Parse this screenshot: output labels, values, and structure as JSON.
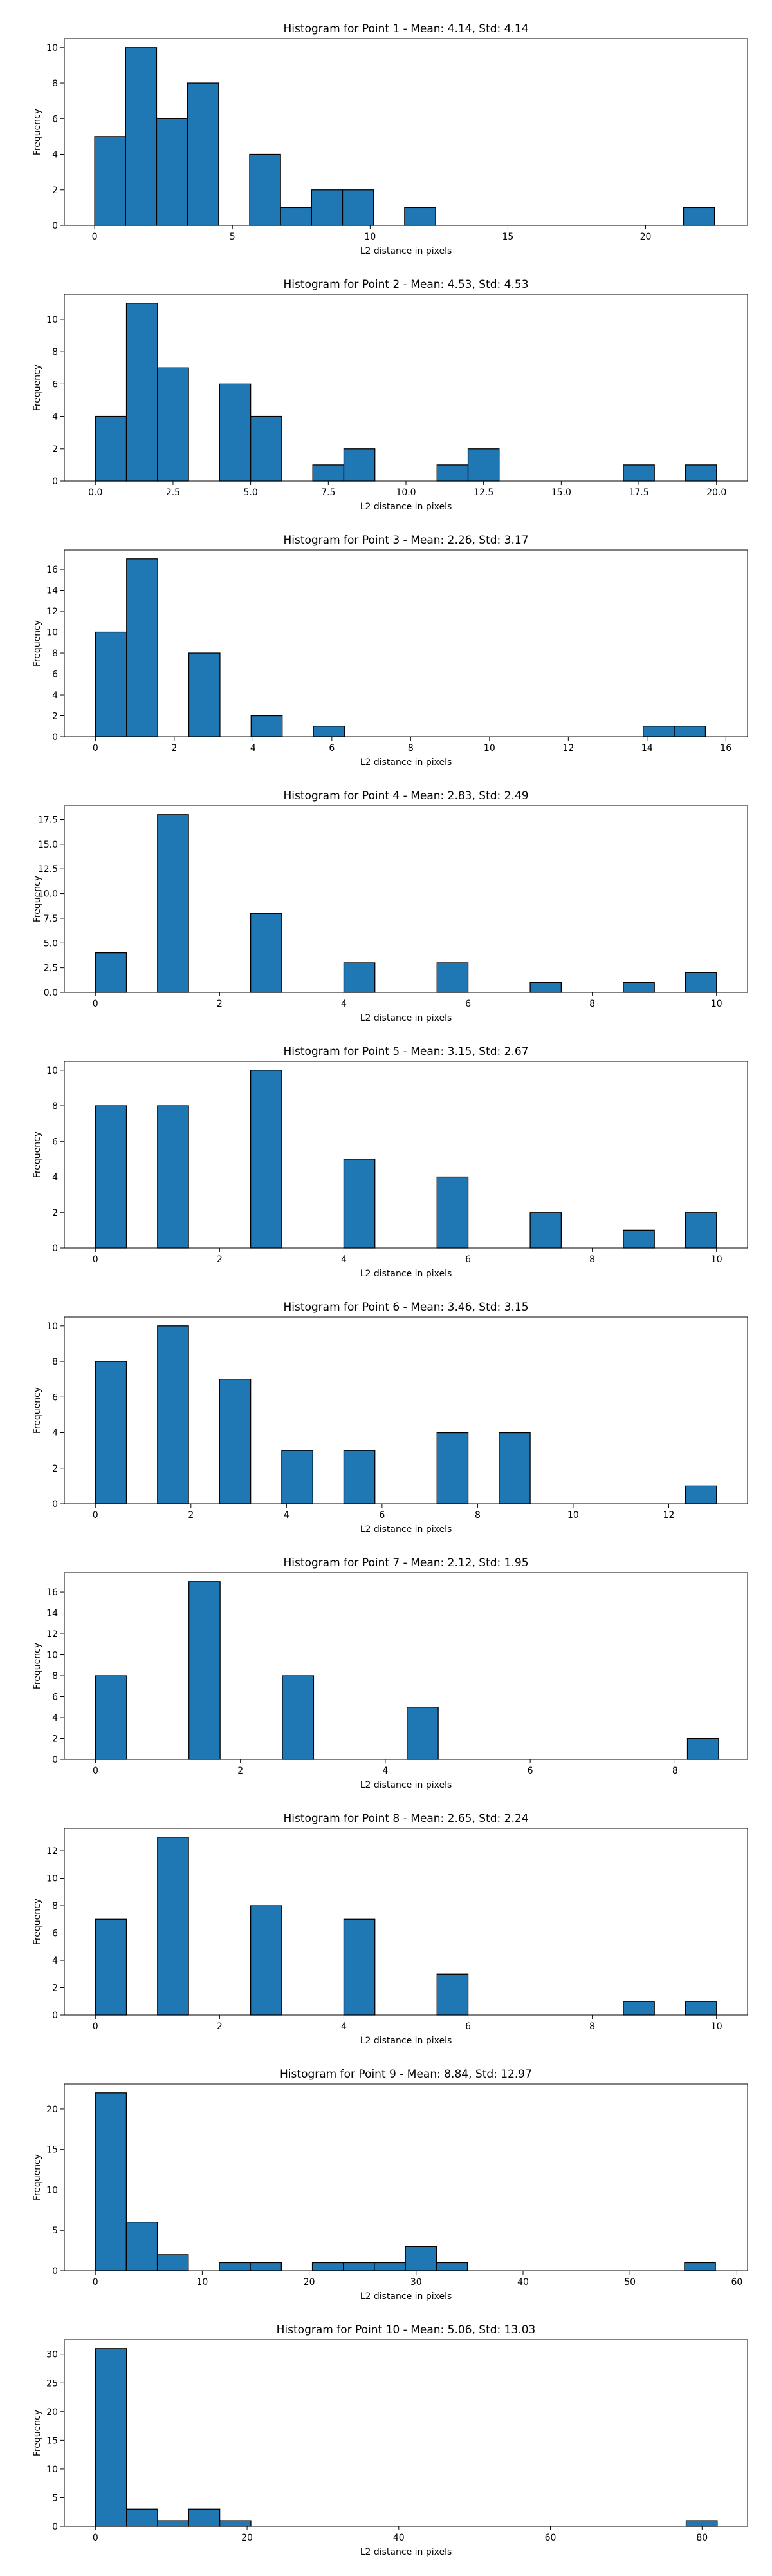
{
  "colors": {
    "bar_fill": "#1f77b4",
    "bar_edge": "#000000",
    "axis": "#000000",
    "background": "#ffffff"
  },
  "chart_data": [
    {
      "type": "bar",
      "title": "Histogram for Point 1 - Mean: 4.14, Std: 4.14",
      "xlabel": "L2 distance in pixels",
      "ylabel": "Frequency",
      "xlim": [
        -1.1,
        23.7
      ],
      "ylim": [
        0,
        10.5
      ],
      "xticks": [
        0,
        5,
        10,
        15,
        20
      ],
      "xtick_labels": [
        "0",
        "5",
        "10",
        "15",
        "20"
      ],
      "yticks": [
        0,
        2,
        4,
        6,
        8,
        10
      ],
      "ytick_labels": [
        "0",
        "2",
        "4",
        "6",
        "8",
        "10"
      ],
      "bins": [
        {
          "start": 0.0,
          "end": 1.125,
          "count": 5
        },
        {
          "start": 1.125,
          "end": 2.25,
          "count": 10
        },
        {
          "start": 2.25,
          "end": 3.375,
          "count": 6
        },
        {
          "start": 3.375,
          "end": 4.5,
          "count": 8
        },
        {
          "start": 5.625,
          "end": 6.75,
          "count": 4
        },
        {
          "start": 6.75,
          "end": 7.875,
          "count": 1
        },
        {
          "start": 7.875,
          "end": 9.0,
          "count": 2
        },
        {
          "start": 9.0,
          "end": 10.125,
          "count": 2
        },
        {
          "start": 11.25,
          "end": 12.375,
          "count": 1
        },
        {
          "start": 21.375,
          "end": 22.5,
          "count": 1
        }
      ]
    },
    {
      "type": "bar",
      "title": "Histogram for Point 2 - Mean: 4.53, Std: 4.53",
      "xlabel": "L2 distance in pixels",
      "ylabel": "Frequency",
      "xlim": [
        -1.0,
        21.0
      ],
      "ylim": [
        0,
        11.55
      ],
      "xticks": [
        0,
        2.5,
        5,
        7.5,
        10,
        12.5,
        15,
        17.5,
        20
      ],
      "xtick_labels": [
        "0.0",
        "2.5",
        "5.0",
        "7.5",
        "10.0",
        "12.5",
        "15.0",
        "17.5",
        "20.0"
      ],
      "yticks": [
        0,
        2,
        4,
        6,
        8,
        10
      ],
      "ytick_labels": [
        "0",
        "2",
        "4",
        "6",
        "8",
        "10"
      ],
      "bins": [
        {
          "start": 0.0,
          "end": 1.0,
          "count": 4
        },
        {
          "start": 1.0,
          "end": 2.0,
          "count": 11
        },
        {
          "start": 2.0,
          "end": 3.0,
          "count": 7
        },
        {
          "start": 4.0,
          "end": 5.0,
          "count": 6
        },
        {
          "start": 5.0,
          "end": 6.0,
          "count": 4
        },
        {
          "start": 7.0,
          "end": 8.0,
          "count": 1
        },
        {
          "start": 8.0,
          "end": 9.0,
          "count": 2
        },
        {
          "start": 11.0,
          "end": 12.0,
          "count": 1
        },
        {
          "start": 12.0,
          "end": 13.0,
          "count": 2
        },
        {
          "start": 17.0,
          "end": 18.0,
          "count": 1
        },
        {
          "start": 19.0,
          "end": 20.0,
          "count": 1
        }
      ]
    },
    {
      "type": "bar",
      "title": "Histogram for Point 3 - Mean: 2.26, Std: 3.17",
      "xlabel": "L2 distance in pixels",
      "ylabel": "Frequency",
      "xlim": [
        -0.79,
        16.55
      ],
      "ylim": [
        0,
        17.85
      ],
      "xticks": [
        0,
        2,
        4,
        6,
        8,
        10,
        12,
        14,
        16
      ],
      "xtick_labels": [
        "0",
        "2",
        "4",
        "6",
        "8",
        "10",
        "12",
        "14",
        "16"
      ],
      "yticks": [
        0,
        2,
        4,
        6,
        8,
        10,
        12,
        14,
        16
      ],
      "ytick_labels": [
        "0",
        "2",
        "4",
        "6",
        "8",
        "10",
        "12",
        "14",
        "16"
      ],
      "bins": [
        {
          "start": 0.0,
          "end": 0.79,
          "count": 10
        },
        {
          "start": 0.79,
          "end": 1.58,
          "count": 17
        },
        {
          "start": 2.37,
          "end": 3.16,
          "count": 8
        },
        {
          "start": 3.95,
          "end": 4.74,
          "count": 2
        },
        {
          "start": 5.53,
          "end": 6.32,
          "count": 1
        },
        {
          "start": 13.9,
          "end": 14.69,
          "count": 1
        },
        {
          "start": 14.69,
          "end": 15.48,
          "count": 1
        }
      ]
    },
    {
      "type": "bar",
      "title": "Histogram for Point 4 - Mean: 2.83, Std: 2.49",
      "xlabel": "L2 distance in pixels",
      "ylabel": "Frequency",
      "xlim": [
        -0.5,
        10.5
      ],
      "ylim": [
        0,
        18.9
      ],
      "xticks": [
        0,
        2,
        4,
        6,
        8,
        10
      ],
      "xtick_labels": [
        "0",
        "2",
        "4",
        "6",
        "8",
        "10"
      ],
      "yticks": [
        0,
        2.5,
        5,
        7.5,
        10,
        12.5,
        15,
        17.5
      ],
      "ytick_labels": [
        "0.0",
        "2.5",
        "5.0",
        "7.5",
        "10.0",
        "12.5",
        "15.0",
        "17.5"
      ],
      "bins": [
        {
          "start": 0.0,
          "end": 0.5,
          "count": 4
        },
        {
          "start": 1.0,
          "end": 1.5,
          "count": 18
        },
        {
          "start": 2.5,
          "end": 3.0,
          "count": 8
        },
        {
          "start": 4.0,
          "end": 4.5,
          "count": 3
        },
        {
          "start": 5.5,
          "end": 6.0,
          "count": 3
        },
        {
          "start": 7.0,
          "end": 7.5,
          "count": 1
        },
        {
          "start": 8.5,
          "end": 9.0,
          "count": 1
        },
        {
          "start": 9.5,
          "end": 10.0,
          "count": 2
        }
      ]
    },
    {
      "type": "bar",
      "title": "Histogram for Point 5 - Mean: 3.15, Std: 2.67",
      "xlabel": "L2 distance in pixels",
      "ylabel": "Frequency",
      "xlim": [
        -0.5,
        10.5
      ],
      "ylim": [
        0,
        10.5
      ],
      "xticks": [
        0,
        2,
        4,
        6,
        8,
        10
      ],
      "xtick_labels": [
        "0",
        "2",
        "4",
        "6",
        "8",
        "10"
      ],
      "yticks": [
        0,
        2,
        4,
        6,
        8,
        10
      ],
      "ytick_labels": [
        "0",
        "2",
        "4",
        "6",
        "8",
        "10"
      ],
      "bins": [
        {
          "start": 0.0,
          "end": 0.5,
          "count": 8
        },
        {
          "start": 1.0,
          "end": 1.5,
          "count": 8
        },
        {
          "start": 2.5,
          "end": 3.0,
          "count": 10
        },
        {
          "start": 4.0,
          "end": 4.5,
          "count": 5
        },
        {
          "start": 5.5,
          "end": 6.0,
          "count": 4
        },
        {
          "start": 7.0,
          "end": 7.5,
          "count": 2
        },
        {
          "start": 8.5,
          "end": 9.0,
          "count": 1
        },
        {
          "start": 9.5,
          "end": 10.0,
          "count": 2
        }
      ]
    },
    {
      "type": "bar",
      "title": "Histogram for Point 6 - Mean: 3.46, Std: 3.15",
      "xlabel": "L2 distance in pixels",
      "ylabel": "Frequency",
      "xlim": [
        -0.65,
        13.65
      ],
      "ylim": [
        0,
        10.5
      ],
      "xticks": [
        0,
        2,
        4,
        6,
        8,
        10,
        12
      ],
      "xtick_labels": [
        "0",
        "2",
        "4",
        "6",
        "8",
        "10",
        "12"
      ],
      "yticks": [
        0,
        2,
        4,
        6,
        8,
        10
      ],
      "ytick_labels": [
        "0",
        "2",
        "4",
        "6",
        "8",
        "10"
      ],
      "bins": [
        {
          "start": 0.0,
          "end": 0.65,
          "count": 8
        },
        {
          "start": 1.3,
          "end": 1.95,
          "count": 10
        },
        {
          "start": 2.6,
          "end": 3.25,
          "count": 7
        },
        {
          "start": 3.9,
          "end": 4.55,
          "count": 3
        },
        {
          "start": 5.2,
          "end": 5.85,
          "count": 3
        },
        {
          "start": 7.15,
          "end": 7.8,
          "count": 4
        },
        {
          "start": 8.45,
          "end": 9.1,
          "count": 4
        },
        {
          "start": 12.35,
          "end": 13.0,
          "count": 1
        }
      ]
    },
    {
      "type": "bar",
      "title": "Histogram for Point 7 - Mean: 2.12, Std: 1.95",
      "xlabel": "L2 distance in pixels",
      "ylabel": "Frequency",
      "xlim": [
        -0.43,
        9.0
      ],
      "ylim": [
        0,
        17.85
      ],
      "xticks": [
        0,
        2,
        4,
        6,
        8
      ],
      "xtick_labels": [
        "0",
        "2",
        "4",
        "6",
        "8"
      ],
      "yticks": [
        0,
        2,
        4,
        6,
        8,
        10,
        12,
        14,
        16
      ],
      "ytick_labels": [
        "0",
        "2",
        "4",
        "6",
        "8",
        "10",
        "12",
        "14",
        "16"
      ],
      "bins": [
        {
          "start": 0.0,
          "end": 0.43,
          "count": 8
        },
        {
          "start": 1.29,
          "end": 1.72,
          "count": 17
        },
        {
          "start": 2.58,
          "end": 3.01,
          "count": 8
        },
        {
          "start": 4.3,
          "end": 4.73,
          "count": 5
        },
        {
          "start": 8.17,
          "end": 8.6,
          "count": 2
        }
      ]
    },
    {
      "type": "bar",
      "title": "Histogram for Point 8 - Mean: 2.65, Std: 2.24",
      "xlabel": "L2 distance in pixels",
      "ylabel": "Frequency",
      "xlim": [
        -0.5,
        10.5
      ],
      "ylim": [
        0,
        13.65
      ],
      "xticks": [
        0,
        2,
        4,
        6,
        8,
        10
      ],
      "xtick_labels": [
        "0",
        "2",
        "4",
        "6",
        "8",
        "10"
      ],
      "yticks": [
        0,
        2,
        4,
        6,
        8,
        10,
        12
      ],
      "ytick_labels": [
        "0",
        "2",
        "4",
        "6",
        "8",
        "10",
        "12"
      ],
      "bins": [
        {
          "start": 0.0,
          "end": 0.5,
          "count": 7
        },
        {
          "start": 1.0,
          "end": 1.5,
          "count": 13
        },
        {
          "start": 2.5,
          "end": 3.0,
          "count": 8
        },
        {
          "start": 4.0,
          "end": 4.5,
          "count": 7
        },
        {
          "start": 5.5,
          "end": 6.0,
          "count": 3
        },
        {
          "start": 8.5,
          "end": 9.0,
          "count": 1
        },
        {
          "start": 9.5,
          "end": 10.0,
          "count": 1
        }
      ]
    },
    {
      "type": "bar",
      "title": "Histogram for Point 9 - Mean: 8.84, Std: 12.97",
      "xlabel": "L2 distance in pixels",
      "ylabel": "Frequency",
      "xlim": [
        -2.9,
        61.0
      ],
      "ylim": [
        0,
        23.1
      ],
      "xticks": [
        0,
        10,
        20,
        30,
        40,
        50,
        60
      ],
      "xtick_labels": [
        "0",
        "10",
        "20",
        "30",
        "40",
        "50",
        "60"
      ],
      "yticks": [
        0,
        5,
        10,
        15,
        20
      ],
      "ytick_labels": [
        "0",
        "5",
        "10",
        "15",
        "20"
      ],
      "bins": [
        {
          "start": 0.0,
          "end": 2.9,
          "count": 22
        },
        {
          "start": 2.9,
          "end": 5.8,
          "count": 6
        },
        {
          "start": 5.8,
          "end": 8.7,
          "count": 2
        },
        {
          "start": 11.6,
          "end": 14.5,
          "count": 1
        },
        {
          "start": 14.5,
          "end": 17.4,
          "count": 1
        },
        {
          "start": 20.3,
          "end": 23.2,
          "count": 1
        },
        {
          "start": 23.2,
          "end": 26.1,
          "count": 1
        },
        {
          "start": 26.1,
          "end": 29.0,
          "count": 1
        },
        {
          "start": 29.0,
          "end": 31.9,
          "count": 3
        },
        {
          "start": 31.9,
          "end": 34.8,
          "count": 1
        },
        {
          "start": 55.1,
          "end": 58.0,
          "count": 1
        }
      ]
    },
    {
      "type": "bar",
      "title": "Histogram for Point 10 - Mean: 5.06, Std: 13.03",
      "xlabel": "L2 distance in pixels",
      "ylabel": "Frequency",
      "xlim": [
        -4.1,
        86.0
      ],
      "ylim": [
        0,
        32.55
      ],
      "xticks": [
        0,
        20,
        40,
        60,
        80
      ],
      "xtick_labels": [
        "0",
        "20",
        "40",
        "60",
        "80"
      ],
      "yticks": [
        0,
        5,
        10,
        15,
        20,
        25,
        30
      ],
      "ytick_labels": [
        "0",
        "5",
        "10",
        "15",
        "20",
        "25",
        "30"
      ],
      "bins": [
        {
          "start": 0.0,
          "end": 4.1,
          "count": 31
        },
        {
          "start": 4.1,
          "end": 8.2,
          "count": 3
        },
        {
          "start": 8.2,
          "end": 12.3,
          "count": 1
        },
        {
          "start": 12.3,
          "end": 16.4,
          "count": 3
        },
        {
          "start": 16.4,
          "end": 20.5,
          "count": 1
        },
        {
          "start": 77.9,
          "end": 82.0,
          "count": 1
        }
      ]
    }
  ]
}
